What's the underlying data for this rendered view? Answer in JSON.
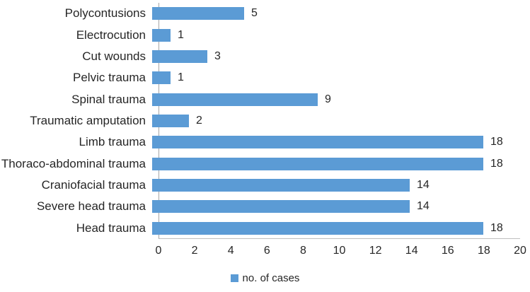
{
  "chart_data": {
    "type": "bar",
    "orientation": "horizontal",
    "title": "",
    "categories": [
      "Polycontusions",
      "Electrocution",
      "Cut wounds",
      "Pelvic trauma",
      "Spinal trauma",
      "Traumatic amputation",
      "Limb trauma",
      "Thoraco-abdominal trauma",
      "Craniofacial trauma",
      "Severe head trauma",
      "Head trauma"
    ],
    "values": [
      5,
      1,
      3,
      1,
      9,
      2,
      18,
      18,
      14,
      14,
      18
    ],
    "series_name": "no. of cases",
    "data_labels_shown": true,
    "xlim": [
      0,
      20
    ],
    "x_ticks": [
      0,
      2,
      4,
      6,
      8,
      10,
      12,
      14,
      16,
      18,
      20
    ],
    "grid": false,
    "legend_position": "bottom",
    "bar_color": "#5b9bd5",
    "axis_color": "#a6a6a6",
    "text_color": "#262626"
  },
  "legend": {
    "label": "no. of cases",
    "swatch_color": "#5b9bd5"
  }
}
